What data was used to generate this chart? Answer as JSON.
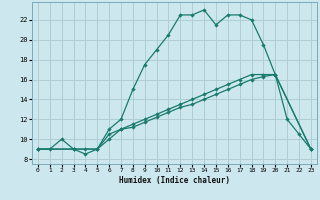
{
  "title": "",
  "xlabel": "Humidex (Indice chaleur)",
  "bg_color": "#cce8ee",
  "grid_color": "#b0cdd4",
  "line_color": "#1a7a6e",
  "xlim": [
    -0.5,
    23.5
  ],
  "ylim": [
    7.5,
    23.8
  ],
  "xticks": [
    0,
    1,
    2,
    3,
    4,
    5,
    6,
    7,
    8,
    9,
    10,
    11,
    12,
    13,
    14,
    15,
    16,
    17,
    18,
    19,
    20,
    21,
    22,
    23
  ],
  "yticks": [
    8,
    10,
    12,
    14,
    16,
    18,
    20,
    22
  ],
  "line1_x": [
    0,
    1,
    2,
    3,
    4,
    5,
    6,
    7,
    8,
    9,
    10,
    11,
    12,
    13,
    14,
    15,
    16,
    17,
    18,
    19,
    20,
    21,
    22,
    23
  ],
  "line1_y": [
    9,
    9,
    10,
    9,
    8.5,
    9,
    11,
    12,
    15,
    17.5,
    19,
    20.5,
    22.5,
    22.5,
    23,
    21.5,
    22.5,
    22.5,
    22,
    19.5,
    16.5,
    12,
    10.5,
    9
  ],
  "line2_x": [
    0,
    3,
    5,
    6,
    7,
    8,
    9,
    10,
    11,
    12,
    13,
    14,
    15,
    16,
    17,
    18,
    19,
    20,
    23
  ],
  "line2_y": [
    9,
    9,
    9,
    10,
    11,
    11.5,
    12,
    12.5,
    13,
    13.5,
    14,
    14.5,
    15,
    15.5,
    16,
    16.5,
    16.5,
    16.5,
    9
  ],
  "line3_x": [
    0,
    3,
    4,
    5,
    6,
    7,
    8,
    9,
    10,
    11,
    12,
    13,
    14,
    15,
    16,
    17,
    18,
    19,
    20,
    23
  ],
  "line3_y": [
    9,
    9,
    9,
    9,
    10.5,
    11,
    11.2,
    11.7,
    12.2,
    12.7,
    13.2,
    13.5,
    14,
    14.5,
    15,
    15.5,
    16,
    16.3,
    16.5,
    9
  ]
}
